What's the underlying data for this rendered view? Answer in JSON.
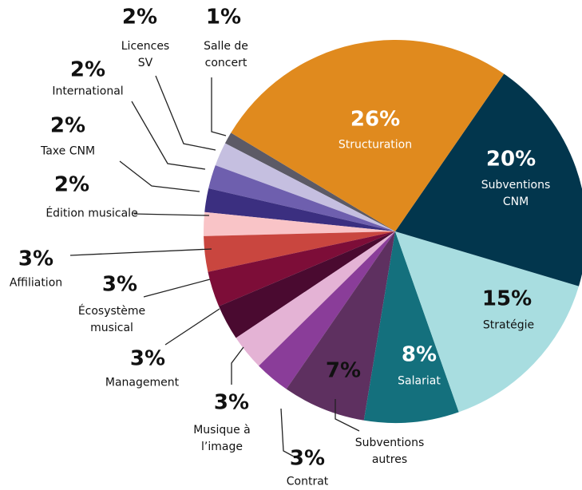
{
  "chart_data": {
    "type": "pie",
    "categories": [
      "Structuration",
      "Subventions CNM",
      "Stratégie",
      "Salariat",
      "Subventions autres",
      "Contrat",
      "Musique à l’image",
      "Management",
      "Écosystème musical",
      "Affiliation",
      "Édition musicale",
      "Taxe CNM",
      "International",
      "Licences SV",
      "Salle de concert"
    ],
    "values": [
      26,
      20,
      15,
      8,
      7,
      3,
      3,
      3,
      3,
      3,
      2,
      2,
      2,
      2,
      1
    ],
    "value_labels": [
      "26%",
      "20%",
      "15%",
      "8%",
      "7%",
      "3%",
      "3%",
      "3%",
      "3%",
      "3%",
      "2%",
      "2%",
      "2%",
      "2%",
      "1%"
    ],
    "colors": [
      "#e08a1e",
      "#02364d",
      "#a8dde0",
      "#14707d",
      "#5e3060",
      "#8a3d99",
      "#e4b3d5",
      "#4a0a30",
      "#7d0d38",
      "#c9463f",
      "#f9c4c7",
      "#3b2f80",
      "#6e5fae",
      "#c5bfe0",
      "#5c5a66"
    ]
  }
}
